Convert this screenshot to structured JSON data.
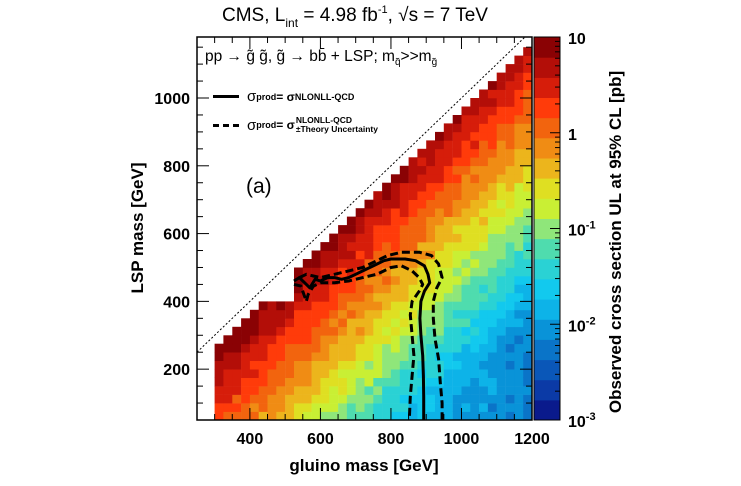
{
  "header": {
    "experiment": "CMS, L",
    "lumi_sub": "int",
    "lumi_value": " = 4.98 fb",
    "lumi_exp": "-1",
    "energy": ", √s = 7 TeV"
  },
  "annotations": {
    "process": "pp → g̃ g̃, g̃ → bb̄ + LSP; m",
    "process_sub1": "q̃",
    "process_mid": ">>m",
    "process_sub2": "g̃",
    "panel_label": "(a)",
    "legend": [
      {
        "style": "solid",
        "lhs": "σ",
        "lhs_sup": "prod",
        "eq": " = σ",
        "rhs_sup": "NLONLL-QCD",
        "rhs_sub": ""
      },
      {
        "style": "dashed",
        "lhs": "σ",
        "lhs_sup": "prod",
        "eq": " = σ",
        "rhs_sup": "NLONLL-QCD",
        "rhs_sub": "±Theory Uncertainty"
      }
    ]
  },
  "chart_data": {
    "type": "heatmap",
    "title": "CMS, L_int = 4.98 fb^-1, √s = 7 TeV",
    "xlabel": "gluino mass [GeV]",
    "ylabel": "LSP mass [GeV]",
    "zlabel": "Observed cross section UL at 95% CL [pb]",
    "xlim": [
      250,
      1200
    ],
    "ylim": [
      50,
      1180
    ],
    "zlim": [
      0.001,
      10
    ],
    "zscale": "log",
    "xticks": [
      400,
      600,
      800,
      1000,
      1200
    ],
    "yticks": [
      200,
      400,
      600,
      800,
      1000
    ],
    "zticks": [
      {
        "value": 10,
        "label": "10"
      },
      {
        "value": 1,
        "label": "1"
      },
      {
        "value": 0.1,
        "label": "10",
        "exp": "-1"
      },
      {
        "value": 0.01,
        "label": "10",
        "exp": "-2"
      },
      {
        "value": 0.001,
        "label": "10",
        "exp": "-3"
      }
    ],
    "bin_width_gev": 25,
    "grid_x_start": 300,
    "grid_y_start": 50,
    "note": "log10 UL per bin; rows from LSP=50 upward, columns from gluino=300; null = no data",
    "grid_model": {
      "diag_offset_gev": 25,
      "low_mass_cut_gluino": 525,
      "low_mass_cut_lsp": 475,
      "diag_top_log10": 0.95,
      "decay_per_100gev_from_diag": 0.34,
      "floor_log10_low_x": -1.55,
      "floor_log10_high_x": -2.2
    },
    "diagonal_line": {
      "label": "m_LSP = m_gluino",
      "style": "dotted",
      "points": [
        [
          250,
          250
        ],
        [
          1200,
          1200
        ]
      ]
    },
    "series": [
      {
        "name": "σprod = σNLONLL-QCD",
        "style": "solid",
        "points": [
          [
            525,
            460
          ],
          [
            540,
            470
          ],
          [
            555,
            455
          ],
          [
            570,
            440
          ],
          [
            585,
            465
          ],
          [
            600,
            460
          ],
          [
            620,
            470
          ],
          [
            640,
            470
          ],
          [
            660,
            465
          ],
          [
            680,
            470
          ],
          [
            700,
            480
          ],
          [
            720,
            490
          ],
          [
            740,
            500
          ],
          [
            760,
            510
          ],
          [
            780,
            520
          ],
          [
            800,
            525
          ],
          [
            840,
            525
          ],
          [
            870,
            520
          ],
          [
            895,
            505
          ],
          [
            905,
            480
          ],
          [
            910,
            455
          ],
          [
            895,
            430
          ],
          [
            885,
            400
          ],
          [
            882,
            350
          ],
          [
            885,
            300
          ],
          [
            890,
            240
          ],
          [
            892,
            180
          ],
          [
            893,
            120
          ],
          [
            893,
            50
          ]
        ]
      },
      {
        "name": "σprod = σNLONLL-QCD + theory uncertainty",
        "style": "dashed",
        "points": [
          [
            540,
            470
          ],
          [
            560,
            480
          ],
          [
            580,
            475
          ],
          [
            600,
            470
          ],
          [
            640,
            480
          ],
          [
            680,
            490
          ],
          [
            720,
            500
          ],
          [
            760,
            520
          ],
          [
            790,
            535
          ],
          [
            830,
            545
          ],
          [
            880,
            545
          ],
          [
            915,
            535
          ],
          [
            935,
            510
          ],
          [
            945,
            470
          ],
          [
            930,
            440
          ],
          [
            920,
            400
          ],
          [
            920,
            350
          ],
          [
            925,
            290
          ],
          [
            935,
            230
          ],
          [
            940,
            160
          ],
          [
            945,
            100
          ],
          [
            945,
            50
          ]
        ]
      },
      {
        "name": "σprod = σNLONLL-QCD − theory uncertainty",
        "style": "dashed",
        "points": [
          [
            525,
            450
          ],
          [
            545,
            445
          ],
          [
            560,
            400
          ],
          [
            565,
            420
          ],
          [
            580,
            445
          ],
          [
            600,
            455
          ],
          [
            640,
            455
          ],
          [
            680,
            460
          ],
          [
            720,
            470
          ],
          [
            760,
            480
          ],
          [
            800,
            500
          ],
          [
            830,
            505
          ],
          [
            860,
            490
          ],
          [
            880,
            470
          ],
          [
            890,
            450
          ],
          [
            880,
            430
          ],
          [
            860,
            400
          ],
          [
            855,
            360
          ],
          [
            860,
            300
          ],
          [
            865,
            240
          ],
          [
            860,
            180
          ],
          [
            855,
            120
          ],
          [
            852,
            50
          ]
        ]
      }
    ]
  }
}
